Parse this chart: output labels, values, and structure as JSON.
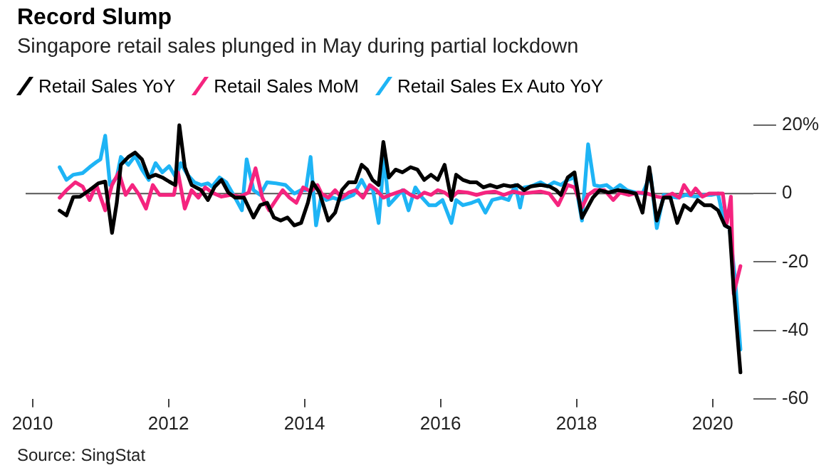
{
  "chart_data": {
    "type": "line",
    "title": "Record Slump",
    "subtitle": "Singapore retail sales plunged in May during partial lockdown",
    "annotations": [
      "Source: SingStat"
    ],
    "legend": "top left",
    "marker": "none",
    "line_style": "solid",
    "xlim": [
      2009.9,
      2020.6
    ],
    "xticks": [
      2010,
      2012,
      2014,
      2016,
      2018,
      2020
    ],
    "ylim": [
      -60,
      20
    ],
    "yticks": [
      {
        "value": 20,
        "label": "20%"
      },
      0,
      -20,
      -40,
      -60
    ],
    "ref_lines": [
      {
        "axis": "y",
        "value": 0,
        "color": "#555555"
      }
    ],
    "series": [
      {
        "name": "Retail Sales YoY",
        "color": "#000000",
        "x": [
          2010.4,
          2010.5,
          2010.6,
          2010.7,
          2010.84,
          2010.97,
          2011.07,
          2011.17,
          2011.24,
          2011.3,
          2011.41,
          2011.51,
          2011.61,
          2011.71,
          2011.81,
          2011.91,
          2012.01,
          2012.1,
          2012.16,
          2012.24,
          2012.34,
          2012.48,
          2012.58,
          2012.68,
          2012.78,
          2012.88,
          2012.98,
          2013.11,
          2013.25,
          2013.35,
          2013.45,
          2013.55,
          2013.65,
          2013.75,
          2013.85,
          2013.95,
          2014.05,
          2014.12,
          2014.22,
          2014.35,
          2014.45,
          2014.55,
          2014.65,
          2014.75,
          2014.84,
          2014.92,
          2015.0,
          2015.09,
          2015.16,
          2015.24,
          2015.34,
          2015.44,
          2015.56,
          2015.66,
          2015.76,
          2015.86,
          2015.96,
          2016.06,
          2016.16,
          2016.23,
          2016.33,
          2016.43,
          2016.53,
          2016.63,
          2016.73,
          2016.83,
          2016.93,
          2017.03,
          2017.13,
          2017.23,
          2017.33,
          2017.47,
          2017.6,
          2017.7,
          2017.77,
          2017.87,
          2017.97,
          2018.08,
          2018.24,
          2018.34,
          2018.47,
          2018.61,
          2018.74,
          2018.87,
          2018.97,
          2019.07,
          2019.18,
          2019.28,
          2019.38,
          2019.48,
          2019.58,
          2019.68,
          2019.78,
          2019.88,
          2019.98,
          2020.08,
          2020.18,
          2020.25,
          2020.31,
          2020.41
        ],
        "values": [
          -5,
          -6.4,
          -1,
          -0.9,
          1,
          3,
          3.5,
          -11.5,
          -2.7,
          8.4,
          10.7,
          12,
          10,
          4.7,
          5.5,
          4.7,
          3.5,
          2.5,
          20,
          7.7,
          2.5,
          1,
          -1.9,
          2,
          4,
          0.3,
          -1.2,
          -1.2,
          -7,
          -3.4,
          -2.7,
          -7,
          -7.9,
          -7,
          -9.3,
          -8.6,
          -2.7,
          3.3,
          0.3,
          -7.9,
          -5.6,
          1,
          3.3,
          3.3,
          8.4,
          7,
          4,
          2.5,
          15.1,
          4.7,
          7,
          6.2,
          7.7,
          7,
          4,
          5.5,
          4,
          8.4,
          -1.9,
          5.5,
          4,
          3.3,
          3.3,
          1.8,
          2.5,
          1.8,
          2.5,
          2.1,
          2.5,
          1,
          2.1,
          2.5,
          2.1,
          1,
          -0.4,
          4.7,
          6.2,
          -7.1,
          -1.2,
          1,
          0.3,
          1,
          0.6,
          0,
          -5.6,
          7.7,
          -7.9,
          -1.2,
          -1.2,
          -8.6,
          -3.4,
          -4.9,
          -1.9,
          -3.4,
          -3.4,
          -4.9,
          -9.3,
          -10.1,
          -27.9,
          -52.3
        ]
      },
      {
        "name": "Retail Sales MoM",
        "color": "#f5247f",
        "x": [
          2010.4,
          2010.5,
          2010.63,
          2010.74,
          2010.84,
          2010.94,
          2011.07,
          2011.17,
          2011.27,
          2011.37,
          2011.47,
          2011.57,
          2011.67,
          2011.77,
          2011.87,
          2011.97,
          2012.08,
          2012.14,
          2012.24,
          2012.34,
          2012.44,
          2012.54,
          2012.64,
          2012.78,
          2012.91,
          2013.05,
          2013.18,
          2013.28,
          2013.38,
          2013.48,
          2013.58,
          2013.68,
          2013.78,
          2013.88,
          2013.98,
          2014.09,
          2014.19,
          2014.25,
          2014.35,
          2014.45,
          2014.55,
          2014.65,
          2014.75,
          2014.86,
          2014.96,
          2015.06,
          2015.16,
          2015.26,
          2015.36,
          2015.46,
          2015.56,
          2015.66,
          2015.76,
          2015.86,
          2015.96,
          2016.06,
          2016.16,
          2016.26,
          2016.4,
          2016.53,
          2016.66,
          2016.8,
          2016.93,
          2017.07,
          2017.2,
          2017.33,
          2017.47,
          2017.6,
          2017.73,
          2017.87,
          2017.97,
          2018.08,
          2018.17,
          2018.27,
          2018.41,
          2018.54,
          2018.64,
          2018.77,
          2018.91,
          2019.04,
          2019.18,
          2019.28,
          2019.41,
          2019.51,
          2019.58,
          2019.68,
          2019.75,
          2019.85,
          2019.95,
          2020.05,
          2020.15,
          2020.21,
          2020.27,
          2020.31,
          2020.41
        ],
        "values": [
          -1.2,
          1,
          3.3,
          2,
          -1.9,
          2.5,
          -4.9,
          2.5,
          6.2,
          -0.4,
          2.5,
          -0.4,
          -4.4,
          2.5,
          -0.4,
          -0.4,
          -0.4,
          6.2,
          -4.4,
          1,
          -1.2,
          1.8,
          0.3,
          -0.9,
          -0.4,
          -0.9,
          0.3,
          7.4,
          -1.2,
          -4.9,
          -1.9,
          1,
          -1.2,
          -2.7,
          1.8,
          0.6,
          2.5,
          0,
          -1.2,
          1,
          -1.2,
          0.3,
          1,
          -1.2,
          2.5,
          1,
          -1.2,
          -0.4,
          0.3,
          1,
          -0.4,
          -1.2,
          0.3,
          -0.4,
          1,
          0.3,
          -1.2,
          0.6,
          0.3,
          -0.4,
          0.3,
          0.6,
          -0.4,
          0.6,
          0,
          0.3,
          0.6,
          0,
          -3.4,
          2.5,
          1.8,
          -4.1,
          -0.4,
          1,
          1,
          -1.9,
          0.3,
          -0.4,
          0.3,
          0,
          -0.9,
          -1.2,
          0,
          -1.2,
          2.5,
          -0.4,
          1.5,
          -0.9,
          0,
          0,
          0,
          -8.6,
          -0.9,
          -29.3,
          -21.2
        ]
      },
      {
        "name": "Retail Sales Ex Auto YoY",
        "color": "#1eb4f5",
        "x": [
          2010.4,
          2010.5,
          2010.6,
          2010.74,
          2010.84,
          2010.94,
          2011.0,
          2011.07,
          2011.14,
          2011.24,
          2011.3,
          2011.41,
          2011.51,
          2011.61,
          2011.71,
          2011.81,
          2011.91,
          2012.01,
          2012.11,
          2012.18,
          2012.28,
          2012.38,
          2012.48,
          2012.58,
          2012.64,
          2012.75,
          2012.85,
          2012.98,
          2013.08,
          2013.15,
          2013.25,
          2013.35,
          2013.45,
          2013.58,
          2013.72,
          2013.85,
          2013.95,
          2014.02,
          2014.09,
          2014.17,
          2014.25,
          2014.32,
          2014.42,
          2014.52,
          2014.62,
          2014.72,
          2014.84,
          2014.92,
          2015.0,
          2015.09,
          2015.17,
          2015.24,
          2015.34,
          2015.44,
          2015.53,
          2015.63,
          2015.73,
          2015.83,
          2015.93,
          2016.03,
          2016.16,
          2016.23,
          2016.33,
          2016.46,
          2016.56,
          2016.66,
          2016.76,
          2016.9,
          2017.0,
          2017.1,
          2017.17,
          2017.23,
          2017.33,
          2017.47,
          2017.57,
          2017.67,
          2017.77,
          2017.87,
          2017.97,
          2018.08,
          2018.17,
          2018.26,
          2018.34,
          2018.44,
          2018.54,
          2018.64,
          2018.74,
          2018.87,
          2018.97,
          2019.09,
          2019.18,
          2019.28,
          2019.38,
          2019.48,
          2019.61,
          2019.75,
          2019.88,
          2019.98,
          2020.08,
          2020.18,
          2020.25,
          2020.33,
          2020.41
        ],
        "values": [
          7.7,
          4,
          5.5,
          6,
          7.7,
          9.2,
          10,
          16.9,
          2.5,
          4.7,
          10.7,
          8.4,
          11,
          7,
          4,
          8.9,
          6.2,
          8,
          4.7,
          8.9,
          5.5,
          3.3,
          2.5,
          3,
          2,
          4.7,
          3.3,
          -1.2,
          -4.9,
          10,
          1,
          -0.4,
          3.3,
          3,
          2.5,
          0,
          1,
          1,
          10.7,
          -9.3,
          -0.4,
          -1.9,
          -1.2,
          -1.9,
          -1.2,
          -0.4,
          4,
          1,
          1.8,
          -8.6,
          10.7,
          -3.4,
          -1.2,
          1,
          -4.9,
          1.8,
          -1.2,
          -3.4,
          -3.4,
          -1.9,
          -8.6,
          -1.9,
          -3.4,
          -2.7,
          -1.9,
          -5.6,
          -1.9,
          -1.2,
          -1.9,
          2.5,
          -4.1,
          1.8,
          2.1,
          3.3,
          2.1,
          3.3,
          2.5,
          4,
          4.7,
          -7.9,
          14.4,
          2.5,
          2.1,
          2.5,
          1,
          2.5,
          1,
          0.3,
          0,
          5.5,
          -10.1,
          -0.4,
          -0.9,
          -1.2,
          -0.4,
          -0.9,
          -0.4,
          -0.4,
          0,
          -9.3,
          -10.1,
          -24.9,
          -45.6
        ]
      }
    ]
  }
}
